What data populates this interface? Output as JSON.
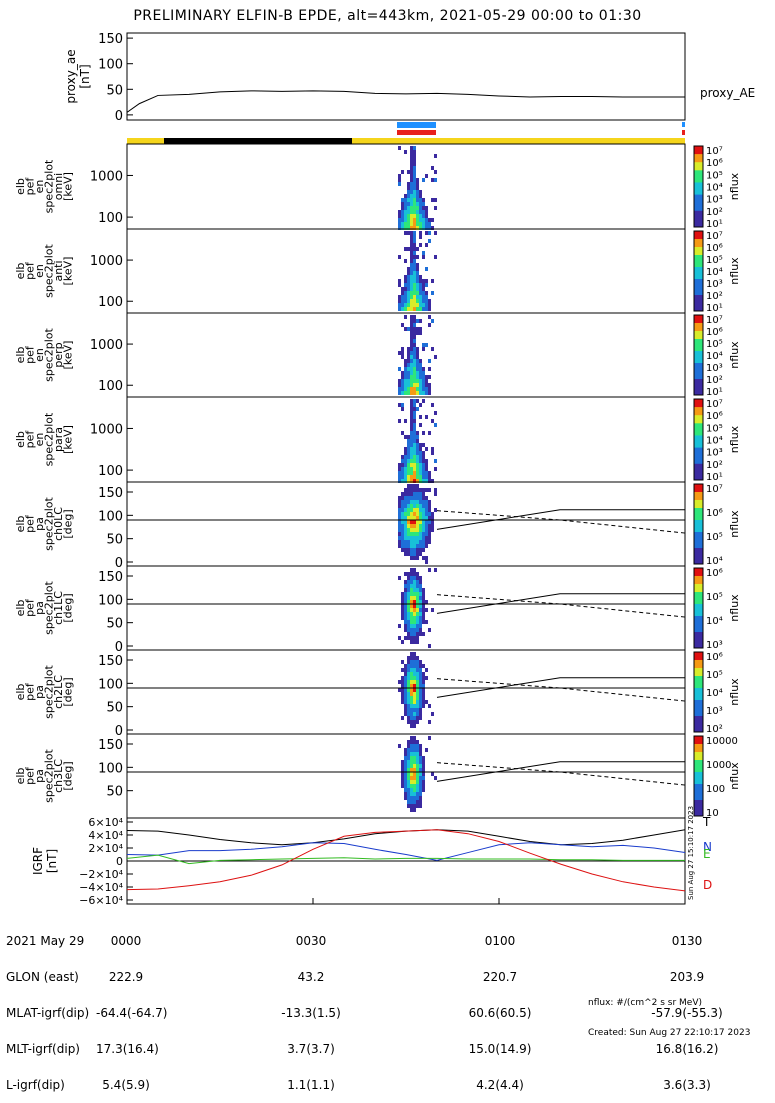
{
  "title": "PRELIMINARY ELFIN-B EPDE, alt=443km, 2021-05-29 00:00 to 01:30",
  "colors": {
    "yellow": "#f5d51c",
    "black": "#000000",
    "blue_bar": "#1e90ff",
    "red_bar": "#e8201c",
    "grf_t": "#000000",
    "grf_n": "#1a3ccc",
    "grf_e": "#33bb22",
    "grf_d": "#dd1111"
  },
  "chart_data": [
    {
      "type": "line",
      "id": "proxy_ae",
      "ylabel": "proxy_ae\n[nT]",
      "legend": "proxy_AE",
      "ylim": [
        -10,
        160
      ],
      "yticks": [
        "150",
        "100",
        "50",
        "0"
      ],
      "ytick_values": [
        150,
        100,
        50,
        0
      ],
      "x": [
        0,
        2,
        5,
        10,
        15,
        20,
        25,
        30,
        35,
        40,
        45,
        50,
        55,
        60,
        65,
        70,
        75,
        80,
        85,
        90
      ],
      "values": [
        5,
        22,
        38,
        40,
        45,
        47,
        46,
        47,
        46,
        42,
        41,
        42,
        40,
        37,
        35,
        36,
        36,
        35,
        35,
        35
      ]
    },
    {
      "type": "heatmap",
      "id": "spec_omni",
      "ylabel": "elb\npef\nen\nspec2plot\nomni\n[keV]",
      "yticks": [
        "1000",
        "100"
      ],
      "colorbar_label": "nflux",
      "colorbar_ticks": [
        "10⁷",
        "10⁶",
        "10⁵",
        "10⁴",
        "10³",
        "10²",
        "10¹"
      ]
    },
    {
      "type": "heatmap",
      "id": "spec_anti",
      "ylabel": "elb\npef\nen\nspec2plot\nanti\n[keV]",
      "yticks": [
        "1000",
        "100"
      ],
      "colorbar_label": "nflux",
      "colorbar_ticks": [
        "10⁷",
        "10⁶",
        "10⁵",
        "10⁴",
        "10³",
        "10²",
        "10¹"
      ]
    },
    {
      "type": "heatmap",
      "id": "spec_perp",
      "ylabel": "elb\npef\nen\nspec2plot\nperp\n[keV]",
      "yticks": [
        "1000",
        "100"
      ],
      "colorbar_label": "nflux",
      "colorbar_ticks": [
        "10⁷",
        "10⁶",
        "10⁵",
        "10⁴",
        "10³",
        "10²",
        "10¹"
      ]
    },
    {
      "type": "heatmap",
      "id": "spec_para",
      "ylabel": "elb\npef\nen\nspec2plot\npara\n[keV]",
      "yticks": [
        "1000",
        "100"
      ],
      "colorbar_label": "nflux",
      "colorbar_ticks": [
        "10⁷",
        "10⁶",
        "10⁵",
        "10⁴",
        "10³",
        "10²",
        "10¹"
      ]
    },
    {
      "type": "heatmap",
      "id": "pa_ch0",
      "ylabel": "elb\npef\npa\nspec2plot\nch0LC\n[deg]",
      "yticks": [
        "150",
        "100",
        "50",
        "0"
      ],
      "colorbar_label": "nflux",
      "colorbar_ticks": [
        "10⁷",
        "10⁶",
        "10⁵",
        "10⁴"
      ]
    },
    {
      "type": "heatmap",
      "id": "pa_ch1",
      "ylabel": "elb\npef\npa\nspec2plot\nch1LC\n[deg]",
      "yticks": [
        "150",
        "100",
        "50",
        "0"
      ],
      "colorbar_label": "nflux",
      "colorbar_ticks": [
        "10⁶",
        "10⁵",
        "10⁴",
        "10³"
      ]
    },
    {
      "type": "heatmap",
      "id": "pa_ch2",
      "ylabel": "elb\npef\npa\nspec2plot\nch2LC\n[deg]",
      "yticks": [
        "150",
        "100",
        "50",
        "0"
      ],
      "colorbar_label": "nflux",
      "colorbar_ticks": [
        "10⁶",
        "10⁵",
        "10⁴",
        "10³",
        "10²"
      ]
    },
    {
      "type": "heatmap",
      "id": "pa_ch3",
      "ylabel": "elb\npef\npa\nspec2plot\nch3LC\n[deg]",
      "yticks": [
        "150",
        "100",
        "50"
      ],
      "colorbar_label": "nflux",
      "colorbar_ticks": [
        "10000",
        "1000",
        "100",
        "10"
      ]
    },
    {
      "type": "line",
      "id": "igrf",
      "ylabel": "IGRF\n[nT]",
      "yticks": [
        "6×10⁴",
        "4×10⁴",
        "2×10⁴",
        "0",
        "−2×10⁴",
        "−4×10⁴",
        "−6×10⁴"
      ],
      "ylim": [
        -60000,
        60000
      ],
      "x": [
        0,
        5,
        10,
        15,
        20,
        25,
        30,
        35,
        40,
        45,
        50,
        55,
        60,
        65,
        70,
        75,
        80,
        85,
        90
      ],
      "series": [
        {
          "name": "T",
          "values": [
            47000,
            46000,
            40000,
            33000,
            28000,
            25000,
            28000,
            34000,
            42000,
            46000,
            48000,
            46000,
            38000,
            30000,
            25000,
            27000,
            32000,
            40000,
            48000
          ]
        },
        {
          "name": "N",
          "values": [
            10000,
            9000,
            16000,
            16000,
            18000,
            22000,
            28000,
            27000,
            18000,
            10000,
            1000,
            13000,
            25000,
            28000,
            25000,
            22000,
            24000,
            20000,
            13000
          ]
        },
        {
          "name": "E",
          "values": [
            4000,
            9000,
            -4000,
            1000,
            2000,
            3000,
            4000,
            5000,
            3000,
            4000,
            4000,
            3000,
            3000,
            3000,
            2000,
            2000,
            1000,
            1000,
            1000
          ]
        },
        {
          "name": "D",
          "values": [
            -44000,
            -43000,
            -38000,
            -32000,
            -22000,
            -6000,
            18000,
            38000,
            44000,
            46000,
            48000,
            42000,
            30000,
            12000,
            -5000,
            -20000,
            -32000,
            -40000,
            -46000
          ]
        }
      ]
    }
  ],
  "time_axis": {
    "labels": [
      {
        "row": "2021 May 29",
        "values": [
          "0000",
          "0030",
          "0100",
          "0130"
        ]
      },
      {
        "row": "GLON (east)",
        "values": [
          "222.9",
          "43.2",
          "220.7",
          "203.9"
        ]
      },
      {
        "row": "MLAT-igrf(dip)",
        "values": [
          "-64.4(-64.7)",
          "-13.3(1.5)",
          "60.6(60.5)",
          "-57.9(-55.3)"
        ]
      },
      {
        "row": "MLT-igrf(dip)",
        "values": [
          "17.3(16.4)",
          "3.7(3.7)",
          "15.0(14.9)",
          "16.8(16.2)"
        ]
      },
      {
        "row": "L-igrf(dip)",
        "values": [
          "5.4(5.9)",
          "1.1(1.1)",
          "4.2(4.4)",
          "3.6(3.3)"
        ]
      }
    ]
  },
  "footer": {
    "units": "nflux: #/(cm^2 s sr MeV)",
    "created": "Created: Sun Aug 27 22:10:17 2023",
    "side_stamp": "Sun Aug 27 15:10:17 2023"
  }
}
